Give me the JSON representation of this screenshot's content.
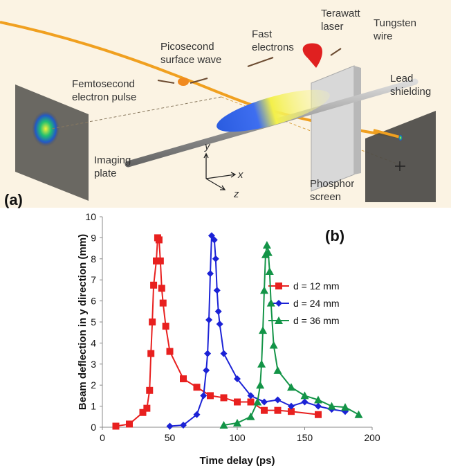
{
  "diagram": {
    "panel_label": "(a)",
    "labels": [
      {
        "lines": [
          "Femtosecond",
          "electron pulse"
        ]
      },
      {
        "lines": [
          "Picosecond",
          "surface wave"
        ]
      },
      {
        "lines": [
          "Fast",
          "electrons"
        ]
      },
      {
        "lines": [
          "Terawatt",
          "laser"
        ]
      },
      {
        "lines": [
          "Tungsten",
          "wire"
        ]
      },
      {
        "lines": [
          "Lead",
          "shielding"
        ]
      },
      {
        "lines": [
          "Imaging",
          "plate"
        ]
      },
      {
        "lines": [
          "Phosphor",
          "screen"
        ]
      }
    ],
    "axes": [
      "y",
      "x",
      "z"
    ]
  },
  "chart_data": {
    "type": "line",
    "panel_label": "(b)",
    "x_label": "Time delay (ps)",
    "y_label": "Beam deflection in y direction (mm)",
    "xlim": [
      0,
      200
    ],
    "xticks": [
      0,
      50,
      100,
      150,
      200
    ],
    "ylim": [
      0,
      10
    ],
    "yticks": [
      0,
      1,
      2,
      3,
      4,
      5,
      6,
      7,
      8,
      9,
      10
    ],
    "grid": false,
    "series": [
      {
        "name": "d = 12 mm",
        "color": "#e8201f",
        "marker": "square",
        "x": [
          10,
          20,
          30,
          33,
          35,
          36,
          37,
          38,
          40,
          41,
          42,
          43,
          44,
          45,
          47,
          50,
          60,
          70,
          80,
          90,
          100,
          110,
          120,
          130,
          140,
          160
        ],
        "values": [
          0.05,
          0.15,
          0.7,
          0.9,
          1.75,
          3.5,
          5.0,
          6.75,
          7.9,
          9.0,
          8.9,
          7.9,
          6.6,
          5.9,
          4.8,
          3.6,
          2.3,
          1.9,
          1.5,
          1.4,
          1.2,
          1.2,
          0.8,
          0.8,
          0.75,
          0.6
        ]
      },
      {
        "name": "d = 24 mm",
        "color": "#1b22d6",
        "marker": "diamond",
        "x": [
          50,
          60,
          70,
          75,
          77,
          78,
          79,
          80,
          81,
          83,
          84,
          85,
          86,
          87,
          90,
          100,
          110,
          120,
          130,
          140,
          150,
          160,
          170,
          180
        ],
        "values": [
          0.05,
          0.1,
          0.6,
          1.5,
          2.7,
          3.5,
          5.1,
          7.3,
          9.1,
          8.9,
          8.0,
          6.5,
          5.5,
          4.9,
          3.5,
          2.3,
          1.5,
          1.2,
          1.3,
          1.0,
          1.2,
          1.0,
          0.85,
          0.75
        ]
      },
      {
        "name": "d = 36 mm",
        "color": "#139447",
        "marker": "triangle",
        "x": [
          90,
          100,
          110,
          115,
          117,
          118,
          119,
          120,
          121,
          122,
          123,
          124,
          125,
          127,
          130,
          140,
          150,
          160,
          170,
          180,
          190
        ],
        "values": [
          0.1,
          0.2,
          0.5,
          1.2,
          2.0,
          3.0,
          4.6,
          6.5,
          8.2,
          8.65,
          8.3,
          7.4,
          5.9,
          3.9,
          2.7,
          1.9,
          1.5,
          1.3,
          1.0,
          0.95,
          0.6
        ]
      }
    ]
  }
}
